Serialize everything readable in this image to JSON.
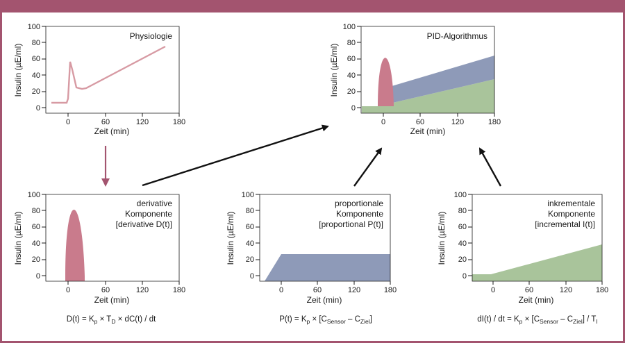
{
  "colors": {
    "border": "#a3546f",
    "physiology_line": "#d79aa3",
    "derivative_fill": "#c97b8c",
    "proportional_fill": "#8e9ab8",
    "incremental_fill": "#a9c49b",
    "arrow_pink": "#a3546f",
    "arrow_black": "#111111"
  },
  "axis": {
    "y_label": "Insulin (µE/ml)",
    "x_label": "Zeit (min)",
    "y_ticks": [
      "100",
      "80",
      "60",
      "40",
      "20",
      "0"
    ],
    "x_ticks": [
      "0",
      "60",
      "120",
      "180"
    ]
  },
  "panels": {
    "physiologie": {
      "title": "Physiologie"
    },
    "pid": {
      "title": "PID-Algorithmus"
    },
    "derivative": {
      "title_line1": "derivative",
      "title_line2": "Komponente",
      "title_line3": "[derivative D(t)]",
      "formula": {
        "lhs": "D(t) = K",
        "sub1": "p",
        "mid1": " × T",
        "sub2": "D",
        "rest": " × dC(t) / dt"
      }
    },
    "proportional": {
      "title_line1": "proportionale",
      "title_line2": "Komponente",
      "title_line3": "[proportional P(t)]",
      "formula": {
        "lhs": "P(t) = K",
        "sub1": "p",
        "mid1": " × [C",
        "sub2": "Sensor",
        "mid2": " – C",
        "sub3": "Ziel",
        "rest": "]"
      }
    },
    "incremental": {
      "title_line1": "inkrementale",
      "title_line2": "Komponente",
      "title_line3": "[incremental I(t)]",
      "formula": {
        "lhs": "dI(t) / dt = K",
        "sub1": "p",
        "mid1": " × [C",
        "sub2": "Sensor",
        "mid2": " – C",
        "sub3": "Ziel",
        "mid3": "] / T",
        "sub4": "I"
      }
    }
  }
}
